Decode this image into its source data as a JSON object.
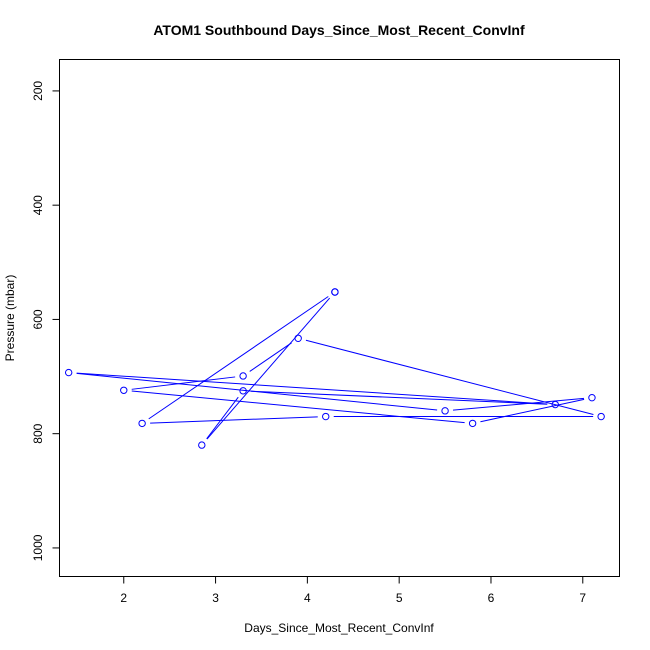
{
  "chart_data": {
    "type": "line",
    "title": "ATOM1 Southbound Days_Since_Most_Recent_ConvInf",
    "xlabel": "Days_Since_Most_Recent_ConvInf",
    "ylabel": "Pressure (mbar)",
    "xlim": [
      1.3,
      7.4
    ],
    "ylim": [
      1050,
      145
    ],
    "y_reversed": true,
    "x_ticks": [
      2,
      3,
      4,
      5,
      6,
      7
    ],
    "y_ticks": [
      200,
      400,
      600,
      800,
      1000
    ],
    "grid": false,
    "series": [
      {
        "color": "#0000ff",
        "marker": "open-circle",
        "points": [
          {
            "x": 4.3,
            "y": 552
          },
          {
            "x": 2.2,
            "y": 782
          },
          {
            "x": 4.2,
            "y": 770
          },
          {
            "x": 7.2,
            "y": 770
          },
          {
            "x": 3.9,
            "y": 633
          },
          {
            "x": 3.3,
            "y": 699
          },
          {
            "x": 2.0,
            "y": 724
          },
          {
            "x": 5.8,
            "y": 782
          },
          {
            "x": 7.1,
            "y": 737
          },
          {
            "x": 5.5,
            "y": 760
          },
          {
            "x": 1.4,
            "y": 693
          },
          {
            "x": 6.7,
            "y": 749
          },
          {
            "x": 3.3,
            "y": 725
          },
          {
            "x": 2.85,
            "y": 820
          },
          {
            "x": 4.3,
            "y": 552
          }
        ]
      }
    ]
  }
}
